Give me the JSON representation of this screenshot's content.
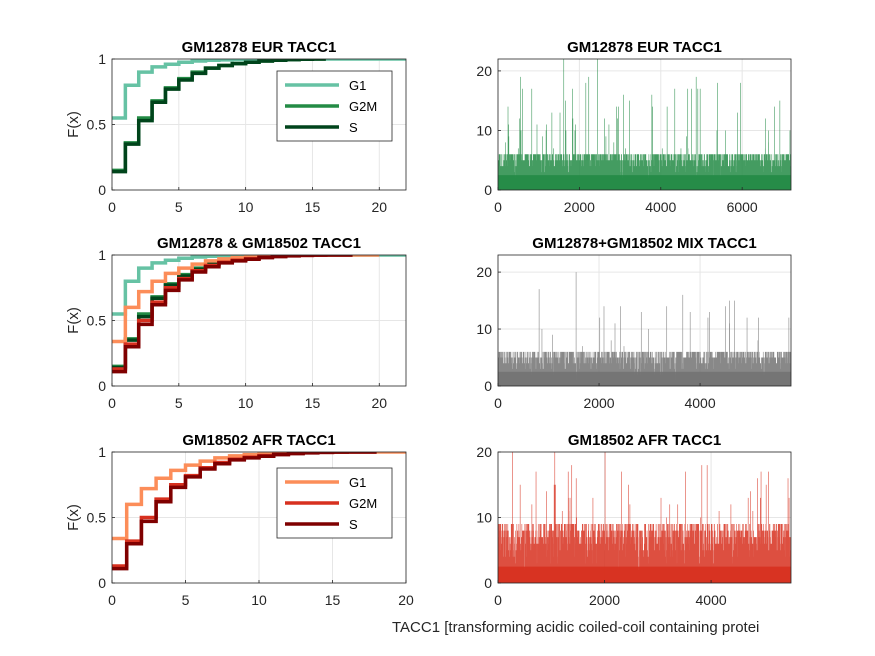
{
  "figure": {
    "xlabel": "TACC1 [transforming acidic coiled-coil containing protei"
  },
  "chart_data": [
    {
      "id": "cdf_eur",
      "type": "line",
      "title": "GM12878 EUR TACC1",
      "ylabel": "F(x)",
      "xlim": [
        0,
        22
      ],
      "ylim": [
        0,
        1
      ],
      "xticks": [
        0,
        5,
        10,
        15,
        20
      ],
      "yticks": [
        0,
        0.5,
        1
      ],
      "grid": true,
      "legend": "top-right",
      "series": [
        {
          "name": "G1",
          "color": "#66c2a4",
          "x": [
            0,
            1,
            2,
            3,
            4,
            5,
            6,
            7,
            8,
            9,
            10,
            11,
            12,
            13,
            14,
            15,
            16,
            22
          ],
          "y": [
            0.55,
            0.8,
            0.9,
            0.94,
            0.96,
            0.975,
            0.985,
            0.99,
            0.993,
            0.995,
            0.997,
            0.998,
            0.999,
            0.999,
            1,
            1,
            1,
            1
          ]
        },
        {
          "name": "G2M",
          "color": "#238b45",
          "x": [
            0,
            1,
            2,
            3,
            4,
            5,
            6,
            7,
            8,
            9,
            10,
            11,
            12,
            13,
            14,
            15,
            16
          ],
          "y": [
            0.15,
            0.36,
            0.55,
            0.68,
            0.78,
            0.85,
            0.9,
            0.93,
            0.95,
            0.965,
            0.975,
            0.985,
            0.99,
            0.995,
            0.998,
            1,
            1
          ]
        },
        {
          "name": "S",
          "color": "#00441b",
          "x": [
            0,
            1,
            2,
            3,
            4,
            5,
            6,
            7,
            8,
            9,
            10,
            11,
            12,
            13,
            14,
            15,
            16
          ],
          "y": [
            0.14,
            0.35,
            0.53,
            0.67,
            0.77,
            0.84,
            0.89,
            0.93,
            0.95,
            0.965,
            0.975,
            0.985,
            0.99,
            0.995,
            0.998,
            1,
            1
          ]
        }
      ]
    },
    {
      "id": "bar_eur",
      "type": "bar",
      "title": "GM12878 EUR TACC1",
      "xlim": [
        0,
        7200
      ],
      "ylim": [
        0,
        22
      ],
      "xticks": [
        0,
        2000,
        4000,
        6000
      ],
      "yticks": [
        0,
        10,
        20
      ],
      "grid": true,
      "color": "#238b45",
      "n": 7200,
      "typical_max": 6,
      "peak_max": 22,
      "seed": 11
    },
    {
      "id": "cdf_mix",
      "type": "line",
      "title": "GM12878 & GM18502 TACC1",
      "ylabel": "F(x)",
      "xlim": [
        0,
        22
      ],
      "ylim": [
        0,
        1
      ],
      "xticks": [
        0,
        5,
        10,
        15,
        20
      ],
      "yticks": [
        0,
        0.5,
        1
      ],
      "grid": true,
      "series": [
        {
          "color": "#66c2a4",
          "x": [
            0,
            1,
            2,
            3,
            4,
            5,
            6,
            7,
            8,
            9,
            10,
            11,
            12,
            13,
            14,
            15,
            16,
            20,
            22
          ],
          "y": [
            0.55,
            0.8,
            0.9,
            0.94,
            0.96,
            0.975,
            0.985,
            0.99,
            0.993,
            0.995,
            0.997,
            0.998,
            0.999,
            0.999,
            1,
            1,
            1,
            1,
            1
          ]
        },
        {
          "color": "#238b45",
          "x": [
            0,
            1,
            2,
            3,
            4,
            5,
            6,
            7,
            8,
            9,
            10,
            11,
            12,
            13,
            14,
            15,
            16
          ],
          "y": [
            0.15,
            0.36,
            0.55,
            0.68,
            0.78,
            0.85,
            0.9,
            0.93,
            0.95,
            0.965,
            0.975,
            0.985,
            0.99,
            0.995,
            0.998,
            1,
            1
          ]
        },
        {
          "color": "#00441b",
          "x": [
            0,
            1,
            2,
            3,
            4,
            5,
            6,
            7,
            8,
            9,
            10,
            11,
            12,
            13,
            14,
            15,
            16
          ],
          "y": [
            0.14,
            0.35,
            0.53,
            0.67,
            0.77,
            0.84,
            0.89,
            0.93,
            0.95,
            0.965,
            0.975,
            0.985,
            0.99,
            0.995,
            0.998,
            1,
            1
          ]
        },
        {
          "color": "#fc8d59",
          "x": [
            0,
            1,
            2,
            3,
            4,
            5,
            6,
            7,
            8,
            9,
            10,
            11,
            12,
            13,
            14,
            15,
            16,
            17,
            18,
            20
          ],
          "y": [
            0.34,
            0.6,
            0.72,
            0.8,
            0.86,
            0.9,
            0.93,
            0.955,
            0.97,
            0.98,
            0.985,
            0.99,
            0.993,
            0.996,
            0.998,
            0.999,
            1,
            1,
            1,
            1
          ]
        },
        {
          "color": "#d7301f",
          "x": [
            0,
            1,
            2,
            3,
            4,
            5,
            6,
            7,
            8,
            9,
            10,
            11,
            12,
            13,
            14,
            15,
            16,
            17,
            18
          ],
          "y": [
            0.13,
            0.32,
            0.5,
            0.64,
            0.75,
            0.82,
            0.88,
            0.92,
            0.945,
            0.96,
            0.972,
            0.982,
            0.99,
            0.994,
            0.997,
            0.999,
            1,
            1,
            1
          ]
        },
        {
          "color": "#7f0000",
          "x": [
            0,
            1,
            2,
            3,
            4,
            5,
            6,
            7,
            8,
            9,
            10,
            11,
            12,
            13,
            14,
            15,
            16,
            17,
            18
          ],
          "y": [
            0.11,
            0.3,
            0.47,
            0.62,
            0.73,
            0.81,
            0.87,
            0.91,
            0.94,
            0.955,
            0.968,
            0.98,
            0.988,
            0.993,
            0.997,
            0.999,
            1,
            1,
            1
          ]
        }
      ]
    },
    {
      "id": "bar_mix",
      "type": "bar",
      "title": "GM12878+GM18502 MIX TACC1",
      "xlim": [
        0,
        5800
      ],
      "ylim": [
        0,
        23
      ],
      "xticks": [
        0,
        2000,
        4000
      ],
      "yticks": [
        0,
        10,
        20
      ],
      "grid": true,
      "color": "#737373",
      "n": 5800,
      "typical_max": 6,
      "peak_max": 23,
      "seed": 29
    },
    {
      "id": "cdf_afr",
      "type": "line",
      "title": "GM18502 AFR TACC1",
      "ylabel": "F(x)",
      "xlim": [
        0,
        20
      ],
      "ylim": [
        0,
        1
      ],
      "xticks": [
        0,
        5,
        10,
        15,
        20
      ],
      "yticks": [
        0,
        0.5,
        1
      ],
      "grid": true,
      "legend": "top-right",
      "series": [
        {
          "name": "G1",
          "color": "#fc8d59",
          "x": [
            0,
            1,
            2,
            3,
            4,
            5,
            6,
            7,
            8,
            9,
            10,
            11,
            12,
            13,
            14,
            15,
            16,
            17,
            18,
            20
          ],
          "y": [
            0.34,
            0.6,
            0.72,
            0.8,
            0.86,
            0.9,
            0.93,
            0.955,
            0.97,
            0.98,
            0.985,
            0.99,
            0.993,
            0.996,
            0.998,
            0.999,
            1,
            1,
            1,
            1
          ]
        },
        {
          "name": "G2M",
          "color": "#d7301f",
          "x": [
            0,
            1,
            2,
            3,
            4,
            5,
            6,
            7,
            8,
            9,
            10,
            11,
            12,
            13,
            14,
            15,
            16,
            17,
            18
          ],
          "y": [
            0.13,
            0.32,
            0.5,
            0.64,
            0.75,
            0.82,
            0.88,
            0.92,
            0.945,
            0.96,
            0.972,
            0.982,
            0.99,
            0.994,
            0.997,
            0.999,
            1,
            1,
            1
          ]
        },
        {
          "name": "S",
          "color": "#7f0000",
          "x": [
            0,
            1,
            2,
            3,
            4,
            5,
            6,
            7,
            8,
            9,
            10,
            11,
            12,
            13,
            14,
            15,
            16,
            17,
            18
          ],
          "y": [
            0.11,
            0.3,
            0.47,
            0.62,
            0.73,
            0.81,
            0.87,
            0.91,
            0.94,
            0.955,
            0.968,
            0.98,
            0.988,
            0.993,
            0.997,
            0.999,
            1,
            1,
            1
          ]
        }
      ]
    },
    {
      "id": "bar_afr",
      "type": "bar",
      "title": "GM18502 AFR TACC1",
      "xlim": [
        0,
        5500
      ],
      "ylim": [
        0,
        20
      ],
      "xticks": [
        0,
        2000,
        4000
      ],
      "yticks": [
        0,
        10,
        20
      ],
      "grid": true,
      "color": "#d7301f",
      "n": 5500,
      "typical_max": 9,
      "peak_max": 20,
      "seed": 47
    }
  ]
}
